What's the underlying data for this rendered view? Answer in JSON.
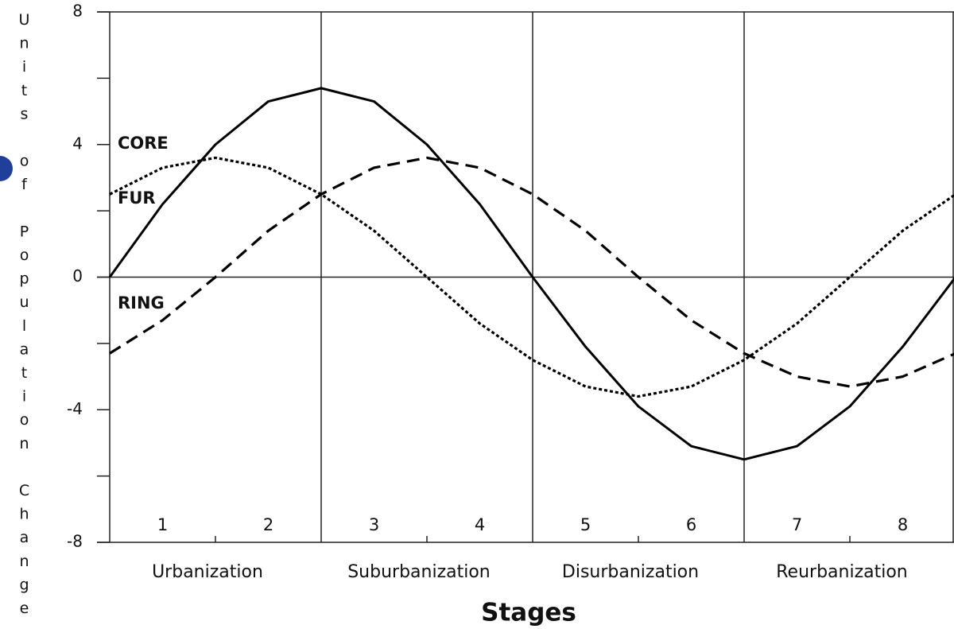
{
  "chart_data": {
    "type": "line",
    "y_label": "Units of Population Change",
    "x_label": "Stages",
    "stages": [
      "1",
      "2",
      "3",
      "4",
      "5",
      "6",
      "7",
      "8"
    ],
    "phases": [
      "Urbanization",
      "Suburbanization",
      "Disurbanization",
      "Reurbanization"
    ],
    "xlim": [
      0,
      8
    ],
    "xticks": [
      0,
      2,
      4,
      6,
      8
    ],
    "xminorticks": [
      1,
      3,
      5,
      7
    ],
    "ylim": [
      -8,
      8
    ],
    "yticks": [
      -8,
      -4,
      0,
      4,
      8
    ],
    "yminorticks": [
      -6,
      -2,
      2,
      6
    ],
    "x": [
      0,
      0.5,
      1,
      1.5,
      2,
      2.5,
      3,
      3.5,
      4,
      4.5,
      5,
      5.5,
      6,
      6.5,
      7,
      7.5,
      8
    ],
    "series": [
      {
        "name": "CORE",
        "color": "#000000",
        "style": "solid",
        "values": [
          0,
          2.2,
          4.0,
          5.3,
          5.7,
          5.3,
          4.0,
          2.2,
          0,
          -2.1,
          -3.9,
          -5.1,
          -5.5,
          -5.1,
          -3.9,
          -2.1,
          0
        ]
      },
      {
        "name": "FUR",
        "color": "#000000",
        "style": "dotted",
        "values": [
          2.5,
          3.3,
          3.6,
          3.3,
          2.5,
          1.4,
          0,
          -1.4,
          -2.5,
          -3.3,
          -3.6,
          -3.3,
          -2.5,
          -1.4,
          0,
          1.4,
          2.5
        ]
      },
      {
        "name": "RING",
        "color": "#000000",
        "style": "dashed",
        "values": [
          -2.3,
          -1.3,
          0,
          1.4,
          2.5,
          3.3,
          3.6,
          3.3,
          2.5,
          1.4,
          0,
          -1.3,
          -2.3,
          -3.0,
          -3.3,
          -3.0,
          -2.3
        ]
      }
    ]
  }
}
